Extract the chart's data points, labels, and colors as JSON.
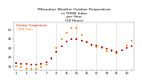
{
  "title": "Milwaukee Weather Outdoor Temperature\nvs THSW Index\nper Hour\n(24 Hours)",
  "temp_color": "#cc0000",
  "thsw_color": "#ff8800",
  "background_color": "#ffffff",
  "grid_color": "#999999",
  "hours": [
    1,
    2,
    3,
    4,
    5,
    6,
    7,
    8,
    9,
    10,
    11,
    12,
    13,
    14,
    15,
    16,
    17,
    18,
    19,
    20,
    21,
    22,
    23,
    24
  ],
  "temp": [
    14,
    13,
    13,
    12,
    12,
    13,
    15,
    19,
    26,
    32,
    37,
    40,
    40,
    38,
    36,
    34,
    33,
    31,
    29,
    28,
    26,
    28,
    30,
    32
  ],
  "thsw": [
    10,
    9,
    8,
    8,
    8,
    9,
    12,
    18,
    30,
    40,
    47,
    52,
    52,
    44,
    37,
    33,
    31,
    30,
    27,
    27,
    24,
    28,
    33,
    38
  ],
  "ylim": [
    6,
    58
  ],
  "yticks": [
    10,
    20,
    30,
    40,
    50
  ],
  "ytick_labels": [
    "10",
    "20",
    "30",
    "40",
    "50"
  ],
  "dashed_gridlines_x": [
    5,
    9,
    13,
    17,
    21
  ],
  "marker_size": 1.8,
  "title_fontsize": 3.2,
  "tick_fontsize": 2.8,
  "legend_label_temp": "Outdoor Temperature",
  "legend_label_thsw": "THSW Index",
  "legend_color_temp": "#cc0000",
  "legend_color_thsw": "#ff8800"
}
